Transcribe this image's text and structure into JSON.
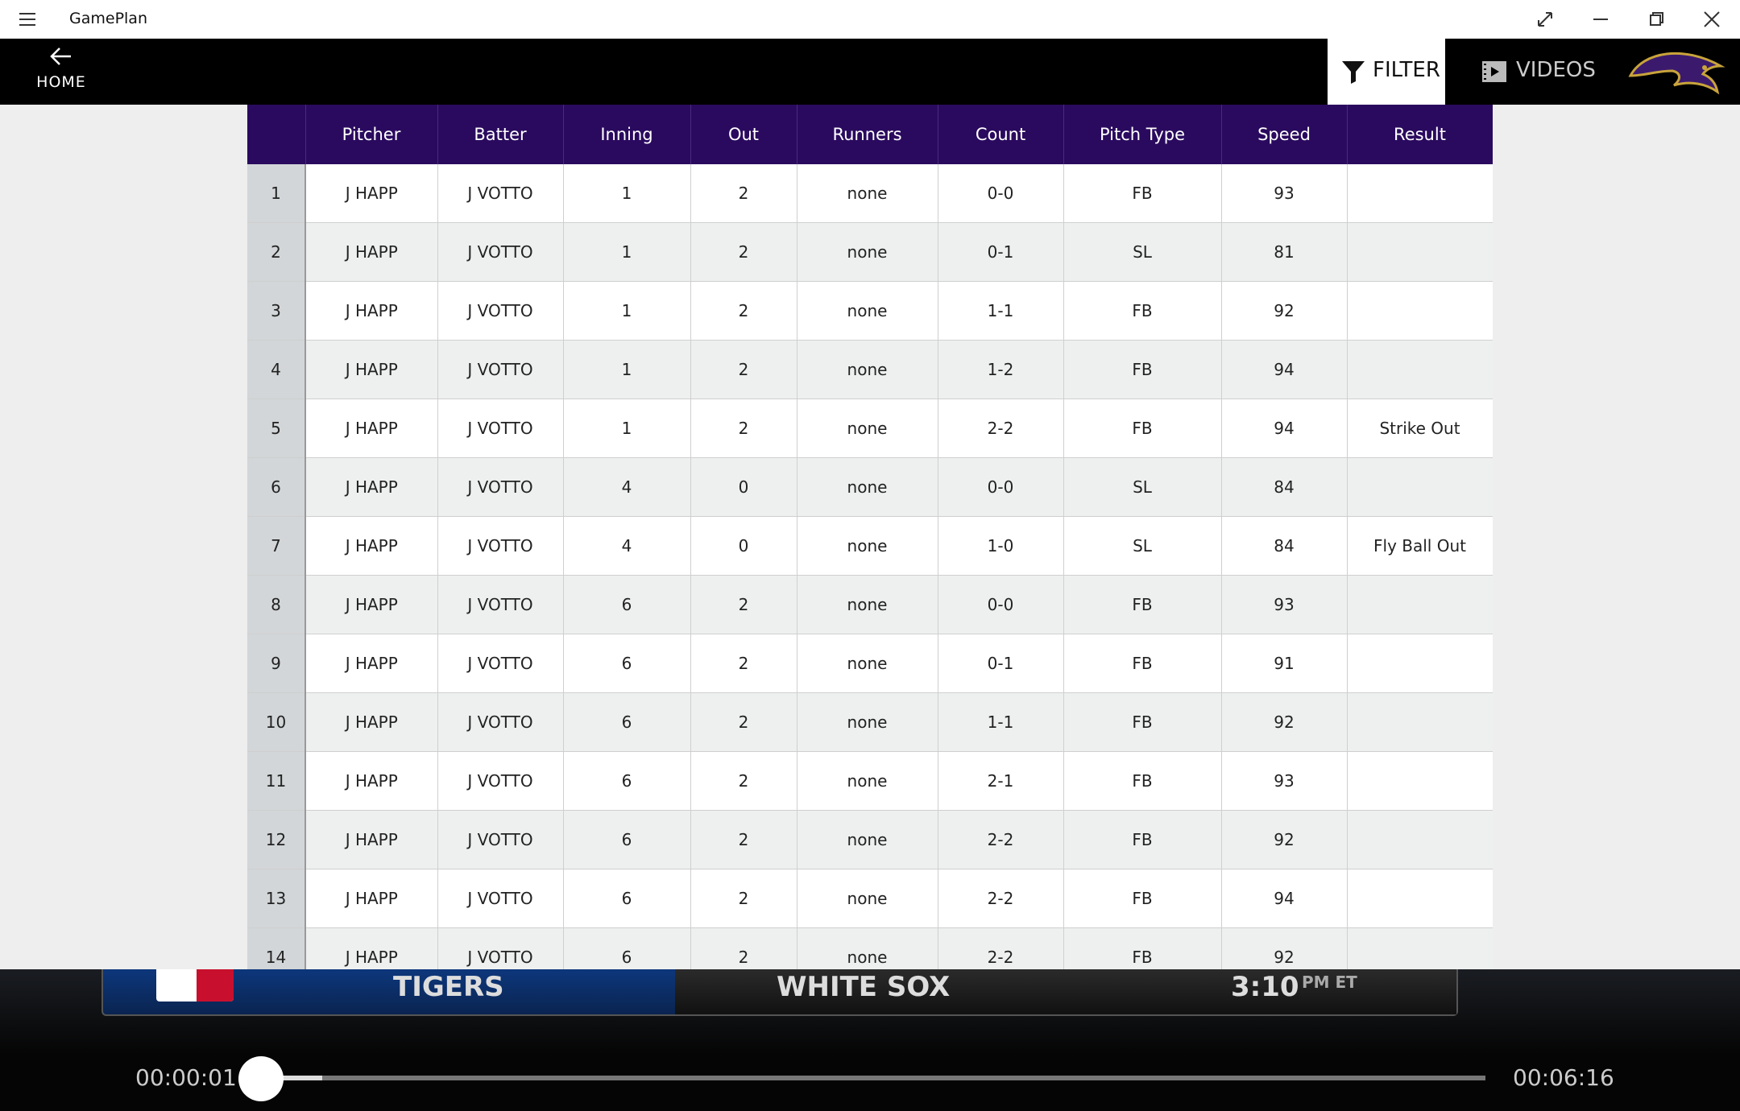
{
  "app": {
    "title": "GamePlan"
  },
  "nav": {
    "home": "HOME",
    "filter": "FILTER",
    "videos": "VIDEOS"
  },
  "table": {
    "columns": [
      "Pitcher",
      "Batter",
      "Inning",
      "Out",
      "Runners",
      "Count",
      "Pitch Type",
      "Speed",
      "Result"
    ],
    "rows": [
      [
        1,
        "J HAPP",
        "J VOTTO",
        1,
        2,
        "none",
        "0-0",
        "FB",
        93,
        null
      ],
      [
        2,
        "J HAPP",
        "J VOTTO",
        1,
        2,
        "none",
        "0-1",
        "SL",
        81,
        null
      ],
      [
        3,
        "J HAPP",
        "J VOTTO",
        1,
        2,
        "none",
        "1-1",
        "FB",
        92,
        null
      ],
      [
        4,
        "J HAPP",
        "J VOTTO",
        1,
        2,
        "none",
        "1-2",
        "FB",
        94,
        null
      ],
      [
        5,
        "J HAPP",
        "J VOTTO",
        1,
        2,
        "none",
        "2-2",
        "FB",
        94,
        "Strike Out"
      ],
      [
        6,
        "J HAPP",
        "J VOTTO",
        4,
        0,
        "none",
        "0-0",
        "SL",
        84,
        null
      ],
      [
        7,
        "J HAPP",
        "J VOTTO",
        4,
        0,
        "none",
        "1-0",
        "SL",
        84,
        "Fly Ball Out"
      ],
      [
        8,
        "J HAPP",
        "J VOTTO",
        6,
        2,
        "none",
        "0-0",
        "FB",
        93,
        null
      ],
      [
        9,
        "J HAPP",
        "J VOTTO",
        6,
        2,
        "none",
        "0-1",
        "FB",
        91,
        null
      ],
      [
        10,
        "J HAPP",
        "J VOTTO",
        6,
        2,
        "none",
        "1-1",
        "FB",
        92,
        null
      ],
      [
        11,
        "J HAPP",
        "J VOTTO",
        6,
        2,
        "none",
        "2-1",
        "FB",
        93,
        null
      ],
      [
        12,
        "J HAPP",
        "J VOTTO",
        6,
        2,
        "none",
        "2-2",
        "FB",
        92,
        null
      ],
      [
        13,
        "J HAPP",
        "J VOTTO",
        6,
        2,
        "none",
        "2-2",
        "FB",
        94,
        null
      ],
      [
        14,
        "J HAPP",
        "J VOTTO",
        6,
        2,
        "none",
        "2-2",
        "FB",
        92,
        null
      ]
    ]
  },
  "scoreboard": {
    "away": "TIGERS",
    "home": "WHITE SOX",
    "time": "3:10",
    "zone": "PM ET"
  },
  "player": {
    "current": "00:00:01",
    "duration": "00:06:16"
  }
}
